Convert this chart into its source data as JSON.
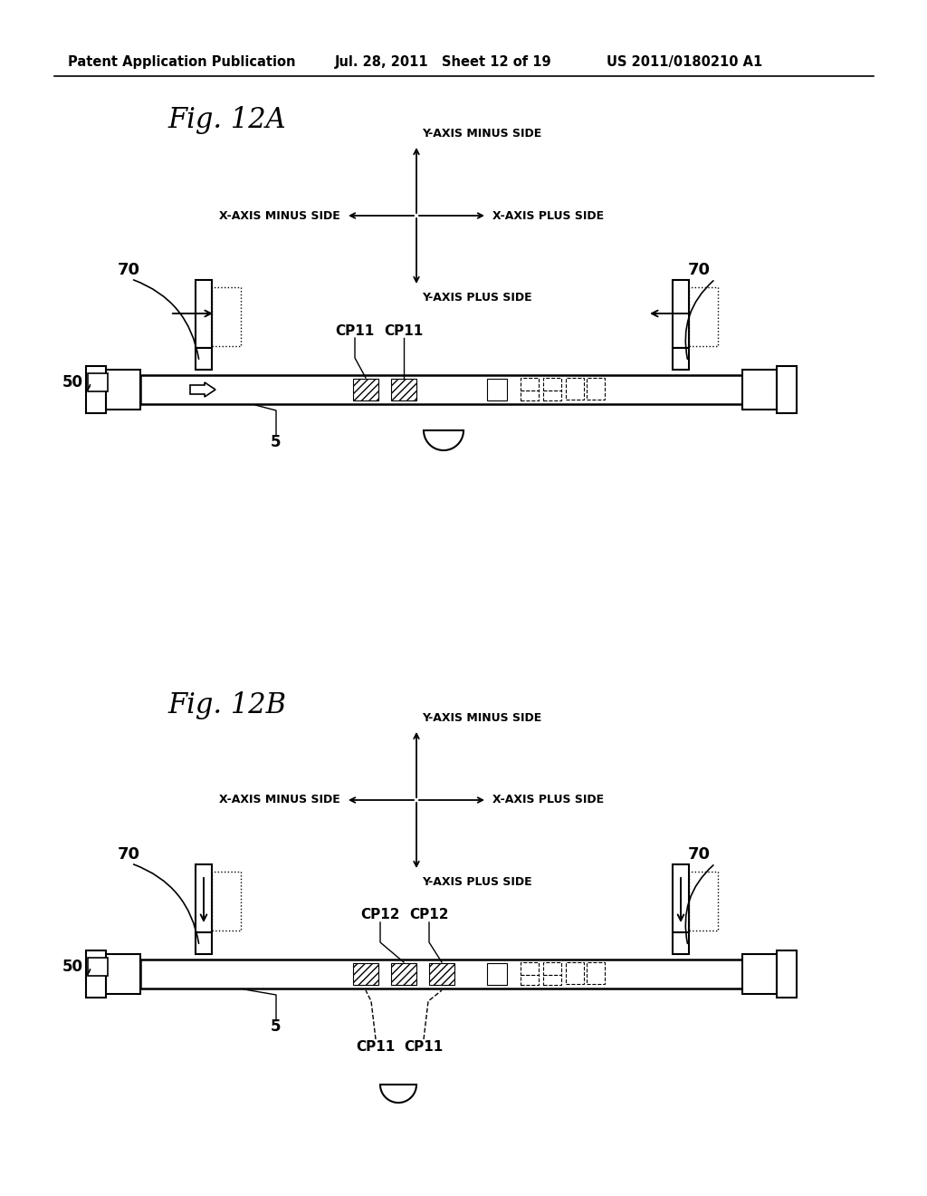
{
  "bg_color": "#ffffff",
  "header_left": "Patent Application Publication",
  "header_mid": "Jul. 28, 2011   Sheet 12 of 19",
  "header_right": "US 2011/0180210 A1",
  "fig_a_title": "Fig. 12A",
  "fig_b_title": "Fig. 12B",
  "y_minus": "Y-AXIS MINUS SIDE",
  "y_plus": "Y-AXIS PLUS SIDE",
  "x_minus": "X-AXIS MINUS SIDE",
  "x_plus": "X-AXIS PLUS SIDE",
  "label_50": "50",
  "label_5": "5",
  "label_70": "70",
  "label_cp11": "CP11",
  "label_cp12": "CP12"
}
